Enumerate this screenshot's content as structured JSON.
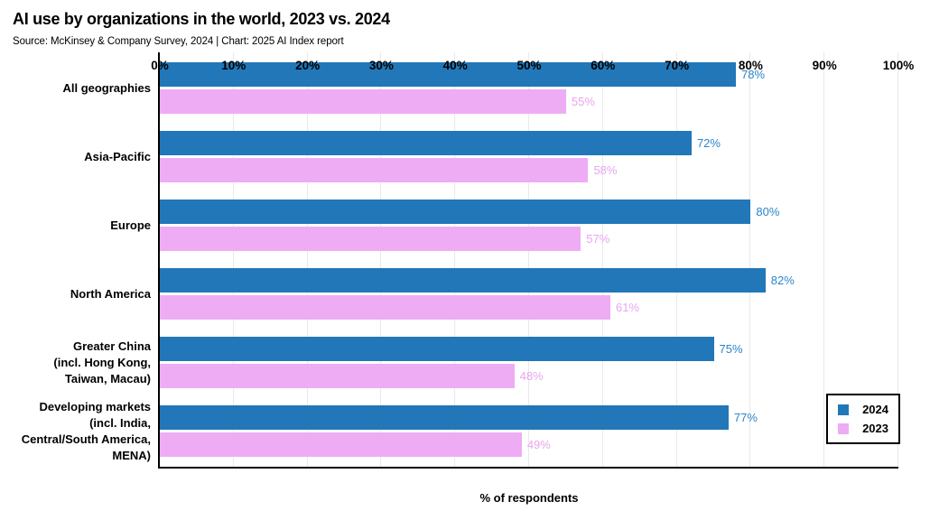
{
  "header": {
    "title": "AI use by organizations in the world, 2023 vs. 2024",
    "subtitle": "Source: McKinsey & Company Survey, 2024 | Chart: 2025 AI Index report"
  },
  "chart_data": {
    "type": "bar",
    "orientation": "horizontal",
    "title": "AI use by organizations in the world, 2023 vs. 2024",
    "subtitle": "Source: McKinsey & Company Survey, 2024 | Chart: 2025 AI Index report",
    "categories": [
      "All geographies",
      "Asia-Pacific",
      "Europe",
      "North America",
      "Greater China (incl. Hong Kong, Taiwan, Macau)",
      "Developing markets (incl. India, Central/South America, MENA)"
    ],
    "category_lines": [
      [
        "All geographies"
      ],
      [
        "Asia-Pacific"
      ],
      [
        "Europe"
      ],
      [
        "North America"
      ],
      [
        "Greater China",
        "(incl. Hong Kong,",
        "Taiwan, Macau)"
      ],
      [
        "Developing markets",
        "(incl. India,",
        "Central/South America,",
        "MENA)"
      ]
    ],
    "series": [
      {
        "name": "2024",
        "color": "#2177B8",
        "label_color": "#2B85C8",
        "values": [
          78,
          72,
          80,
          82,
          75,
          77
        ]
      },
      {
        "name": "2023",
        "color": "#EEACF5",
        "label_color": "#E6A6EF",
        "values": [
          55,
          58,
          57,
          61,
          48,
          49
        ]
      }
    ],
    "value_suffix": "%",
    "xlabel": "% of respondents",
    "x_ticks": [
      "0%",
      "10%",
      "20%",
      "30%",
      "40%",
      "50%",
      "60%",
      "70%",
      "80%",
      "90%",
      "100%"
    ],
    "xlim": [
      0,
      100
    ],
    "grid": "vertical",
    "gridline_color": "#E9E9E9",
    "axis_color": "#000000",
    "legend": {
      "position": "bottom-right",
      "entries": [
        "2024",
        "2023"
      ]
    }
  }
}
